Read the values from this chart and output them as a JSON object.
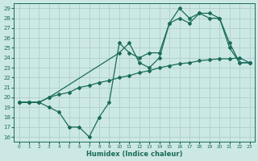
{
  "xlabel": "Humidex (Indice chaleur)",
  "bg_color": "#cce8e5",
  "line_color": "#1a6b5a",
  "grid_color": "#aed0cc",
  "xlim": [
    -0.5,
    23.5
  ],
  "ylim": [
    15.5,
    29.5
  ],
  "yticks": [
    16,
    17,
    18,
    19,
    20,
    21,
    22,
    23,
    24,
    25,
    26,
    27,
    28,
    29
  ],
  "xticks": [
    0,
    1,
    2,
    3,
    4,
    5,
    6,
    7,
    8,
    9,
    10,
    11,
    12,
    13,
    14,
    15,
    16,
    17,
    18,
    19,
    20,
    21,
    22,
    23
  ],
  "line1_x": [
    0,
    1,
    2,
    3,
    4,
    5,
    6,
    7,
    8,
    9,
    10,
    11,
    12,
    13,
    14,
    15,
    16,
    17,
    18,
    19,
    20,
    21,
    22,
    23
  ],
  "line1_y": [
    19.5,
    19.5,
    19.5,
    20.0,
    20.3,
    20.5,
    21.0,
    21.2,
    21.5,
    21.7,
    22.0,
    22.2,
    22.5,
    22.7,
    23.0,
    23.2,
    23.4,
    23.5,
    23.7,
    23.8,
    23.9,
    23.9,
    24.0,
    23.5
  ],
  "line2_x": [
    0,
    1,
    2,
    3,
    10,
    11,
    12,
    13,
    14,
    15,
    16,
    17,
    18,
    19,
    20,
    21,
    22,
    23
  ],
  "line2_y": [
    19.5,
    19.5,
    19.5,
    20.0,
    24.5,
    25.5,
    23.5,
    23.0,
    24.0,
    27.5,
    29.0,
    28.0,
    28.5,
    28.5,
    28.0,
    25.0,
    23.5,
    23.5
  ],
  "line3_x": [
    0,
    1,
    2,
    3,
    4,
    5,
    6,
    7,
    8,
    9,
    10,
    11,
    12,
    13,
    14,
    15,
    16,
    17,
    18,
    19,
    20,
    21,
    22,
    23
  ],
  "line3_y": [
    19.5,
    19.5,
    19.5,
    19.0,
    18.5,
    17.0,
    17.0,
    16.0,
    18.0,
    19.5,
    25.5,
    24.5,
    24.0,
    24.5,
    24.5,
    27.5,
    28.0,
    27.5,
    28.5,
    28.0,
    28.0,
    25.5,
    23.5,
    23.5
  ]
}
